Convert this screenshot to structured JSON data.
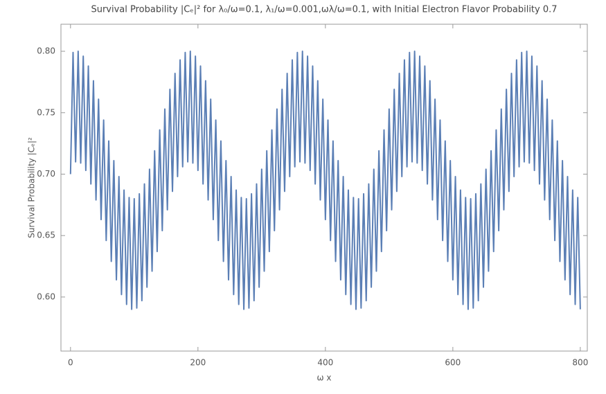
{
  "chart_data": {
    "type": "line",
    "title": "Survival Probability |Cₑ|² for λ₀/ω=0.1, λ₁/ω=0.001,ωλ/ω=0.1, with Initial Electron Flavor Probability 0.7",
    "xlabel": "ω x",
    "ylabel": "Survival Probability |Cₑ|²",
    "xlim": [
      -15,
      811
    ],
    "ylim": [
      0.556,
      0.822
    ],
    "xticks": [
      0,
      200,
      400,
      600,
      800
    ],
    "yticks": [
      {
        "value": 0.6,
        "label": "0.60"
      },
      {
        "value": 0.65,
        "label": "0.65"
      },
      {
        "value": 0.7,
        "label": "0.70"
      },
      {
        "value": 0.75,
        "label": "0.75"
      },
      {
        "value": 0.8,
        "label": "0.80"
      }
    ],
    "x": [
      0,
      4,
      8,
      12,
      16,
      20,
      24,
      28,
      32,
      36,
      40,
      44,
      48,
      52,
      56,
      60,
      64,
      68,
      72,
      76,
      80,
      84,
      88,
      92,
      96,
      100,
      104,
      108,
      112,
      116,
      120,
      124,
      128,
      132,
      136,
      140,
      144,
      148,
      152,
      156,
      160,
      164,
      168,
      172,
      176,
      180,
      184,
      188,
      192,
      196,
      200,
      204,
      208,
      212,
      216,
      220,
      224,
      228,
      232,
      236,
      240,
      244,
      248,
      252,
      256,
      260,
      264,
      268,
      272,
      276,
      280,
      284,
      288,
      292,
      296,
      300,
      304,
      308,
      312,
      316,
      320,
      324,
      328,
      332,
      336,
      340,
      344,
      348,
      352,
      356,
      360,
      364,
      368,
      372,
      376,
      380,
      384,
      388,
      392,
      396,
      400,
      404,
      408,
      412,
      416,
      420,
      424,
      428,
      432,
      436,
      440,
      444,
      448,
      452,
      456,
      460,
      464,
      468,
      472,
      476,
      480,
      484,
      488,
      492,
      496,
      500,
      504,
      508,
      512,
      516,
      520,
      524,
      528,
      532,
      536,
      540,
      544,
      548,
      552,
      556,
      560,
      564,
      568,
      572,
      576,
      580,
      584,
      588,
      592,
      596,
      600,
      604,
      608,
      612,
      616,
      620,
      624,
      628,
      632,
      636,
      640,
      644,
      648,
      652,
      656,
      660,
      664,
      668,
      672,
      676,
      680,
      684,
      688,
      692,
      696,
      700,
      704,
      708,
      712,
      716,
      720,
      724,
      728,
      732,
      736,
      740,
      744,
      748,
      752,
      756,
      760,
      764,
      768,
      772,
      776,
      780,
      784,
      788,
      792,
      796,
      800
    ],
    "series": [
      {
        "color": "#5b7fb5",
        "values": [
          0.7,
          0.799,
          0.71,
          0.8,
          0.709,
          0.796,
          0.703,
          0.788,
          0.692,
          0.776,
          0.679,
          0.761,
          0.663,
          0.744,
          0.646,
          0.727,
          0.629,
          0.711,
          0.614,
          0.698,
          0.602,
          0.687,
          0.594,
          0.681,
          0.59,
          0.68,
          0.591,
          0.684,
          0.597,
          0.692,
          0.608,
          0.704,
          0.621,
          0.719,
          0.637,
          0.736,
          0.654,
          0.753,
          0.671,
          0.769,
          0.686,
          0.782,
          0.698,
          0.793,
          0.706,
          0.799,
          0.71,
          0.8,
          0.709,
          0.796,
          0.703,
          0.788,
          0.692,
          0.776,
          0.679,
          0.761,
          0.663,
          0.744,
          0.646,
          0.727,
          0.629,
          0.711,
          0.614,
          0.698,
          0.602,
          0.687,
          0.594,
          0.681,
          0.59,
          0.68,
          0.591,
          0.684,
          0.597,
          0.692,
          0.608,
          0.704,
          0.621,
          0.719,
          0.637,
          0.736,
          0.654,
          0.753,
          0.671,
          0.769,
          0.686,
          0.782,
          0.698,
          0.793,
          0.706,
          0.799,
          0.71,
          0.8,
          0.709,
          0.796,
          0.703,
          0.788,
          0.692,
          0.776,
          0.679,
          0.761,
          0.663,
          0.744,
          0.646,
          0.727,
          0.629,
          0.711,
          0.614,
          0.698,
          0.602,
          0.687,
          0.594,
          0.681,
          0.59,
          0.68,
          0.591,
          0.684,
          0.597,
          0.692,
          0.608,
          0.704,
          0.621,
          0.719,
          0.637,
          0.736,
          0.654,
          0.753,
          0.671,
          0.769,
          0.686,
          0.782,
          0.698,
          0.793,
          0.706,
          0.799,
          0.71,
          0.8,
          0.709,
          0.796,
          0.703,
          0.788,
          0.692,
          0.776,
          0.679,
          0.761,
          0.663,
          0.744,
          0.646,
          0.727,
          0.629,
          0.711,
          0.614,
          0.698,
          0.602,
          0.687,
          0.594,
          0.681,
          0.59,
          0.68,
          0.591,
          0.684,
          0.597,
          0.692,
          0.608,
          0.704,
          0.621,
          0.719,
          0.637,
          0.736,
          0.654,
          0.753,
          0.671,
          0.769,
          0.686,
          0.782,
          0.698,
          0.793,
          0.706,
          0.799,
          0.71,
          0.8,
          0.709,
          0.796,
          0.703,
          0.788,
          0.692,
          0.776,
          0.679,
          0.761,
          0.663,
          0.744,
          0.646,
          0.727,
          0.629,
          0.711,
          0.614,
          0.698,
          0.602,
          0.687,
          0.594,
          0.681,
          0.59
        ]
      }
    ]
  }
}
